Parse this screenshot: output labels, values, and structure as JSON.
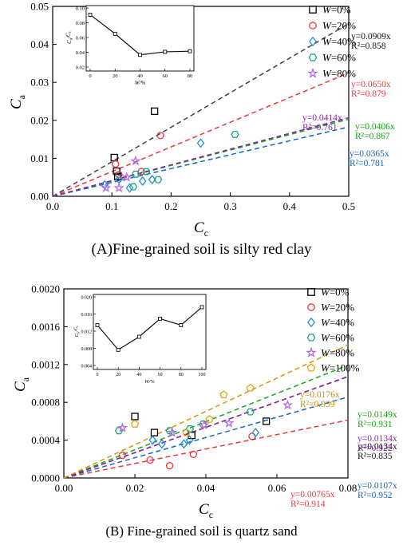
{
  "captions": {
    "a": "(A)Fine-grained soil is silty red clay",
    "b": "(B) Fine-grained soil is quartz sand"
  },
  "chart_data": [
    {
      "id": "A",
      "type": "scatter",
      "title": "",
      "xlabel": "C",
      "xlabel_sub": "c",
      "ylabel": "C",
      "ylabel_sub": "a",
      "xlim": [
        0.0,
        0.5
      ],
      "ylim": [
        0.0,
        0.05
      ],
      "xticks": [
        0.0,
        0.1,
        0.2,
        0.3,
        0.4,
        0.5
      ],
      "xtick_labels": [
        "0.0",
        "0.1",
        "0.2",
        "0.3",
        "0.4",
        "0.5"
      ],
      "yticks": [
        0.0,
        0.01,
        0.02,
        0.03,
        0.04,
        0.05
      ],
      "ytick_labels": [
        "0.00",
        "0.01",
        "0.02",
        "0.03",
        "0.04",
        "0.05"
      ],
      "legend_position": "top-right",
      "series": [
        {
          "name": "W=0%",
          "symbol": "square",
          "color": "#000000",
          "trend_color": "#444444",
          "slope": 0.0909,
          "equation": "y=0.0909x",
          "r2": "R²=0.858",
          "points": [
            [
              0.104,
              0.0102
            ],
            [
              0.108,
              0.0066
            ],
            [
              0.11,
              0.0052
            ],
            [
              0.172,
              0.0224
            ]
          ]
        },
        {
          "name": "W=20%",
          "symbol": "circle",
          "color": "#e8383d",
          "trend_color": "#e8383d",
          "slope": 0.065,
          "equation": "y=0.0650x",
          "r2": "R²=0.879",
          "points": [
            [
              0.106,
              0.0085
            ],
            [
              0.112,
              0.0057
            ],
            [
              0.15,
              0.0065
            ],
            [
              0.182,
              0.016
            ]
          ]
        },
        {
          "name": "W=40%",
          "symbol": "diamond",
          "color": "#1f8fd6",
          "trend_color": "#1565c0",
          "slope": 0.0365,
          "equation": "y=0.0365x",
          "r2": "R²=0.781",
          "points": [
            [
              0.088,
              0.003
            ],
            [
              0.112,
              0.0045
            ],
            [
              0.13,
              0.0022
            ],
            [
              0.152,
              0.004
            ],
            [
              0.168,
              0.0044
            ],
            [
              0.25,
              0.014
            ]
          ]
        },
        {
          "name": "W=60%",
          "symbol": "hexagon",
          "color": "#1aa67d",
          "trend_color": "#11a811",
          "slope": 0.0406,
          "equation": "y=0.0406x",
          "r2": "R²=0.867",
          "points": [
            [
              0.136,
              0.0025
            ],
            [
              0.14,
              0.0058
            ],
            [
              0.158,
              0.0065
            ],
            [
              0.178,
              0.0044
            ],
            [
              0.308,
              0.0163
            ]
          ]
        },
        {
          "name": "W=80%",
          "symbol": "star",
          "color": "#b36ae2",
          "trend_color": "#8b1fa8",
          "slope": 0.0414,
          "equation": "y=0.0414x",
          "r2": "R²=0.761",
          "points": [
            [
              0.09,
              0.0022
            ],
            [
              0.112,
              0.0022
            ],
            [
              0.125,
              0.005
            ],
            [
              0.14,
              0.0093
            ]
          ]
        }
      ],
      "inset": {
        "xlabel": "W/%",
        "ylabel": "C",
        "ylabel_sub": "a",
        "ylabel_mid": "/",
        "ylabel2": "C",
        "ylabel2_sub": "c",
        "xlim": [
          0,
          80
        ],
        "ylim": [
          0.02,
          0.1
        ],
        "xticks": [
          0,
          20,
          40,
          60,
          80
        ],
        "xtick_labels": [
          "0",
          "20",
          "40",
          "60",
          "80"
        ],
        "yticks": [
          0.02,
          0.04,
          0.06,
          0.08,
          0.1
        ],
        "ytick_labels": [
          "0.02",
          "0.04",
          "0.06",
          "0.08",
          "0.10"
        ],
        "x": [
          0,
          20,
          40,
          60,
          80
        ],
        "y": [
          0.0909,
          0.065,
          0.0365,
          0.0406,
          0.0414
        ]
      }
    },
    {
      "id": "B",
      "type": "scatter",
      "title": "",
      "xlabel": "C",
      "xlabel_sub": "c",
      "ylabel": "C",
      "ylabel_sub": "a",
      "xlim": [
        0.0,
        0.08
      ],
      "ylim": [
        0.0,
        0.002
      ],
      "xticks": [
        0.0,
        0.02,
        0.04,
        0.06,
        0.08
      ],
      "xtick_labels": [
        "0.00",
        "0.02",
        "0.04",
        "0.06",
        "0.08"
      ],
      "yticks": [
        0.0,
        0.0004,
        0.0008,
        0.0012,
        0.0016,
        0.002
      ],
      "ytick_labels": [
        "0.0000",
        "0.0004",
        "0.0008",
        "0.0012",
        "0.0016",
        "0.0020"
      ],
      "legend_position": "top-right",
      "series": [
        {
          "name": "W=0%",
          "symbol": "square",
          "color": "#000000",
          "trend_color": "#444444",
          "slope": 0.0134,
          "equation": "y=0.0134x",
          "r2": "R²=0.835",
          "points": [
            [
              0.02,
              0.00065
            ],
            [
              0.0255,
              0.00048
            ],
            [
              0.036,
              0.00045
            ],
            [
              0.057,
              0.0006
            ]
          ]
        },
        {
          "name": "W=20%",
          "symbol": "circle",
          "color": "#e8383d",
          "trend_color": "#e8383d",
          "slope": 0.00765,
          "equation": "y=0.00765x",
          "r2": "R²=0.914",
          "points": [
            [
              0.0165,
              0.00024
            ],
            [
              0.0243,
              0.00019
            ],
            [
              0.0298,
              0.00013
            ],
            [
              0.0365,
              0.00025
            ],
            [
              0.053,
              0.00044
            ]
          ]
        },
        {
          "name": "W=40%",
          "symbol": "diamond",
          "color": "#1f8fd6",
          "trend_color": "#1565c0",
          "slope": 0.0107,
          "equation": "y=0.0107x",
          "r2": "R²=0.952",
          "points": [
            [
              0.025,
              0.0004
            ],
            [
              0.0276,
              0.00036
            ],
            [
              0.0338,
              0.00036
            ],
            [
              0.0354,
              0.0004
            ],
            [
              0.054,
              0.00048
            ]
          ]
        },
        {
          "name": "W=60%",
          "symbol": "hexagon",
          "color": "#1aa67d",
          "trend_color": "#11a811",
          "slope": 0.0149,
          "equation": "y=0.0149x",
          "r2": "R²=0.931",
          "points": [
            [
              0.0155,
              0.0005
            ],
            [
              0.0298,
              0.0005
            ],
            [
              0.0355,
              0.00052
            ],
            [
              0.0392,
              0.00057
            ],
            [
              0.0525,
              0.0007
            ]
          ]
        },
        {
          "name": "W=80%",
          "symbol": "star",
          "color": "#b36ae2",
          "trend_color": "#8b1fa8",
          "slope": 0.0134,
          "equation": "y=0.0134x",
          "r2": "R²=0.922",
          "points": [
            [
              0.0165,
              0.00053
            ],
            [
              0.0305,
              0.00048
            ],
            [
              0.0395,
              0.00056
            ],
            [
              0.0465,
              0.00058
            ],
            [
              0.063,
              0.00077
            ]
          ]
        },
        {
          "name": "W=100%",
          "symbol": "pentagon",
          "color": "#e8a317",
          "trend_color": "#d4960d",
          "slope": 0.0176,
          "equation": "y=0.0176x",
          "r2": "R²=0.959",
          "points": [
            [
              0.02,
              0.00057
            ],
            [
              0.0345,
              0.00048
            ],
            [
              0.041,
              0.00062
            ],
            [
              0.045,
              0.00088
            ],
            [
              0.0525,
              0.00095
            ]
          ]
        }
      ],
      "inset": {
        "xlabel": "W/%",
        "ylabel": "C",
        "ylabel_sub": "a",
        "ylabel_mid": "/",
        "ylabel2": "C",
        "ylabel2_sub": "c",
        "xlim": [
          0,
          100
        ],
        "ylim": [
          0.004,
          0.02
        ],
        "xticks": [
          0,
          20,
          40,
          60,
          80,
          100
        ],
        "xtick_labels": [
          "0",
          "20",
          "40",
          "60",
          "80",
          "100"
        ],
        "yticks": [
          0.004,
          0.008,
          0.012,
          0.016,
          0.02
        ],
        "ytick_labels": [
          "0.004",
          "0.008",
          "0.012",
          "0.016",
          "0.020"
        ],
        "x": [
          0,
          20,
          40,
          60,
          80,
          100
        ],
        "y": [
          0.0134,
          0.00765,
          0.0107,
          0.0149,
          0.0134,
          0.0176
        ]
      }
    }
  ]
}
